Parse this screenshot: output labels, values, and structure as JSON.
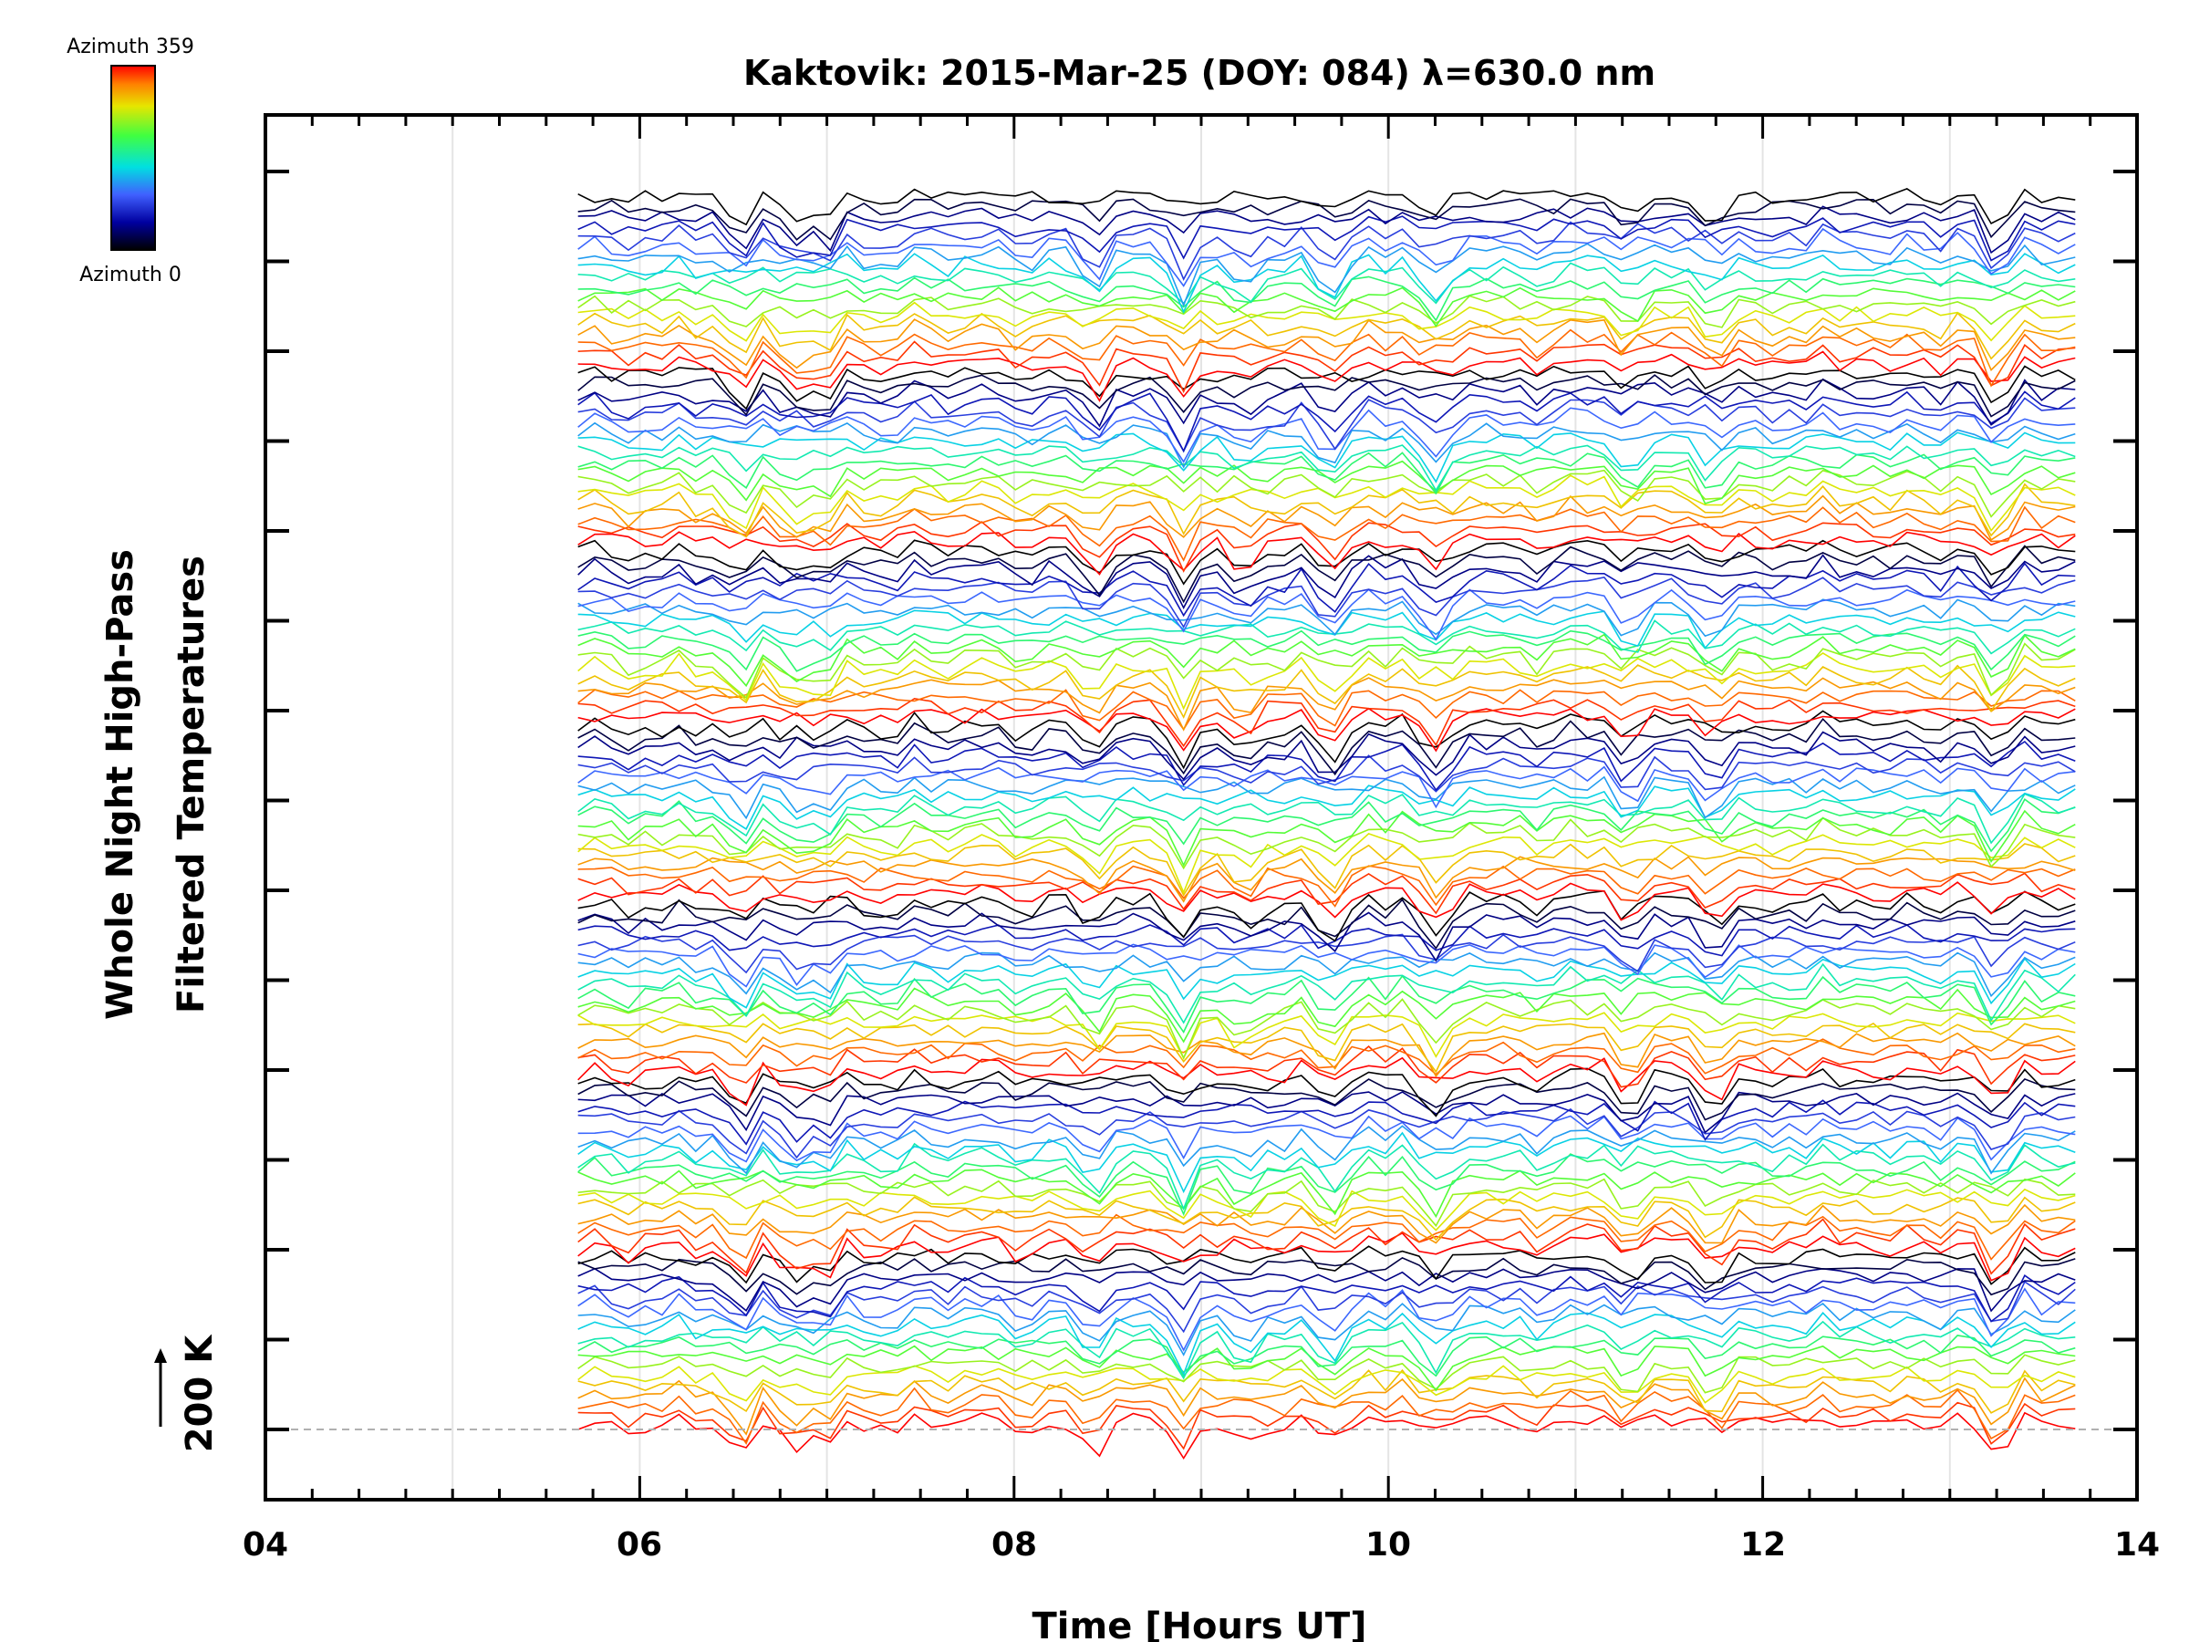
{
  "chart_data": {
    "type": "line",
    "title": "Kaktovik: 2015-Mar-25 (DOY: 084) λ=630.0 nm",
    "xlabel": "Time [Hours UT]",
    "ylabel": [
      "Whole Night High-Pass",
      "Filtered Temperatures"
    ],
    "xlim": [
      4,
      14
    ],
    "x_ticks": [
      "04",
      "06",
      "08",
      "10",
      "12",
      "14"
    ],
    "scale_bar": {
      "label": "200 K",
      "value_k": 200
    },
    "colorbar": {
      "top_label": "Azimuth  359",
      "bottom_label": "Azimuth  0",
      "colors": [
        "#ff0000",
        "#ff8000",
        "#e6e600",
        "#40ff40",
        "#00e0e0",
        "#4060ff",
        "#0000a0",
        "#000000"
      ]
    },
    "data_x_range": [
      5.67,
      13.67
    ],
    "groups": 7,
    "traces_per_group": 18,
    "grid": true,
    "legend": "none"
  }
}
